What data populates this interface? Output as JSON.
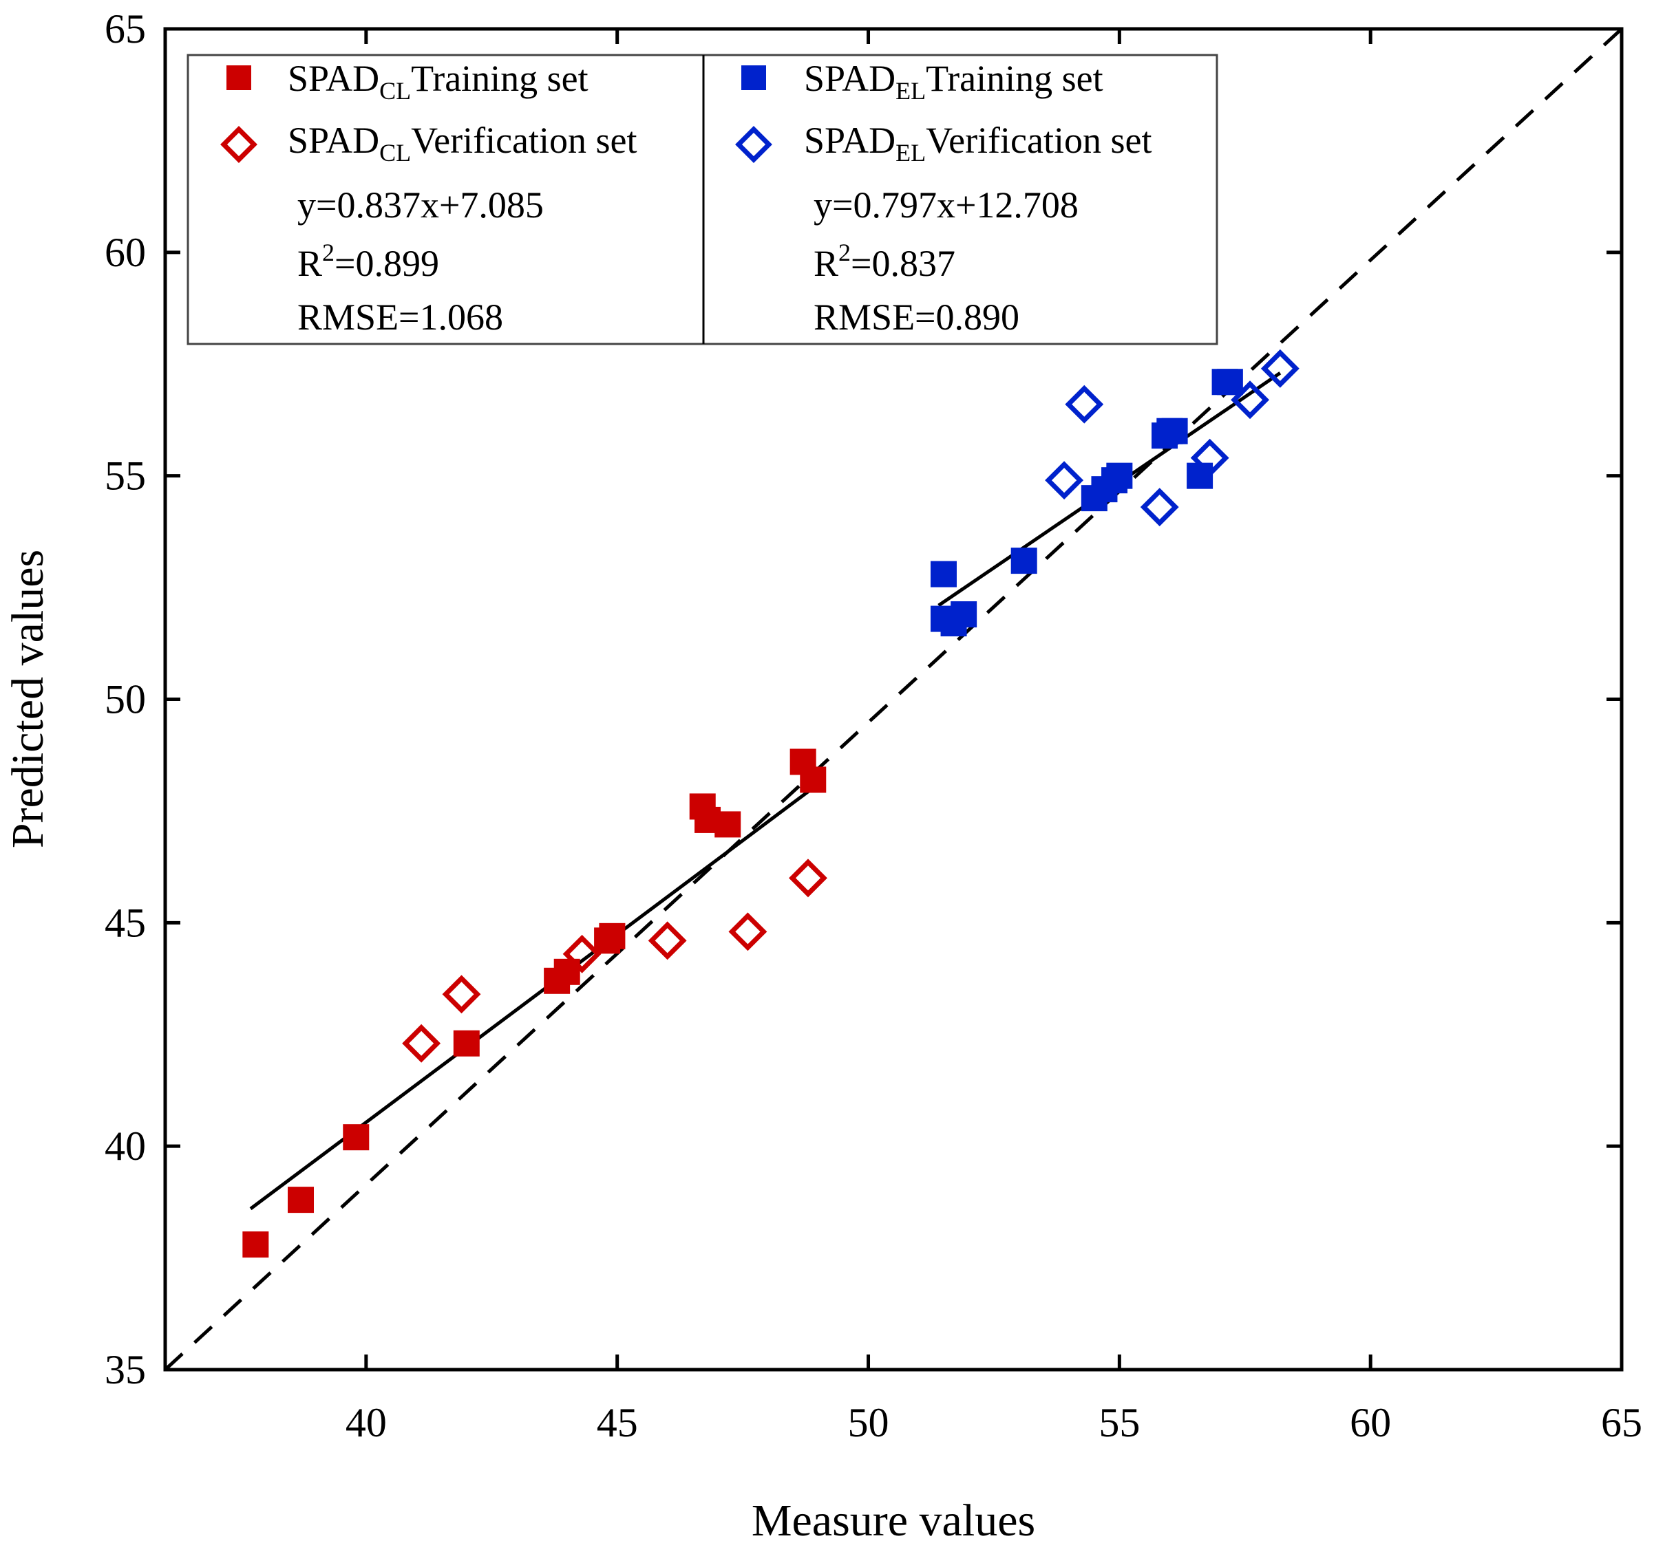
{
  "chart_data": {
    "type": "scatter",
    "xlabel": "Measure values",
    "ylabel": "Predicted values",
    "xlim": [
      36,
      65
    ],
    "ylim": [
      35,
      65
    ],
    "x_ticks": [
      "40",
      "45",
      "50",
      "55",
      "60",
      "65"
    ],
    "y_ticks": [
      "35",
      "40",
      "45",
      "50",
      "55",
      "60",
      "65"
    ],
    "grid": false,
    "legend_position": "top-left",
    "reference_line": {
      "style": "dashed",
      "color": "#000000",
      "from": [
        36,
        35
      ],
      "to": [
        65,
        65
      ]
    },
    "legend": {
      "columns": [
        {
          "entries": [
            {
              "main": "SPAD",
              "sub": "CL",
              "suffix": "Training set",
              "marker": "square-filled",
              "color": "#cc0000"
            },
            {
              "main": "SPAD",
              "sub": "CL",
              "suffix": "Verification set",
              "marker": "diamond-open",
              "color": "#cc0000"
            }
          ],
          "equation": "y=0.837x+7.085",
          "r2_label": "R",
          "r2_sup": "2",
          "r2_value": "=0.899",
          "rmse": "RMSE=1.068"
        },
        {
          "entries": [
            {
              "main": "SPAD",
              "sub": "EL",
              "suffix": "Training set",
              "marker": "square-filled",
              "color": "#0022cc"
            },
            {
              "main": "SPAD",
              "sub": "EL",
              "suffix": "Verification set",
              "marker": "diamond-open",
              "color": "#0022cc"
            }
          ],
          "equation": "y=0.797x+12.708",
          "r2_label": "R",
          "r2_sup": "2",
          "r2_value": "=0.837",
          "rmse": "RMSE=0.890"
        }
      ]
    },
    "series": [
      {
        "name": "SPADCL Training set",
        "marker": "square-filled",
        "color": "#cc0000",
        "points": [
          [
            37.8,
            37.8
          ],
          [
            38.7,
            38.8
          ],
          [
            39.8,
            40.2
          ],
          [
            42.0,
            42.3
          ],
          [
            43.8,
            43.7
          ],
          [
            44.0,
            43.9
          ],
          [
            44.8,
            44.6
          ],
          [
            44.9,
            44.7
          ],
          [
            46.7,
            47.6
          ],
          [
            46.8,
            47.3
          ],
          [
            47.2,
            47.2
          ],
          [
            48.7,
            48.6
          ],
          [
            48.9,
            48.2
          ]
        ]
      },
      {
        "name": "SPADCL Verification set",
        "marker": "diamond-open",
        "color": "#cc0000",
        "points": [
          [
            41.1,
            42.3
          ],
          [
            41.9,
            43.4
          ],
          [
            44.3,
            44.3
          ],
          [
            46.0,
            44.6
          ],
          [
            47.6,
            44.8
          ],
          [
            48.8,
            46.0
          ]
        ]
      },
      {
        "name": "SPADEL Training set",
        "marker": "square-filled",
        "color": "#0022cc",
        "points": [
          [
            51.5,
            52.8
          ],
          [
            51.5,
            51.8
          ],
          [
            51.7,
            51.7
          ],
          [
            51.9,
            51.9
          ],
          [
            53.1,
            53.1
          ],
          [
            54.5,
            54.5
          ],
          [
            54.7,
            54.7
          ],
          [
            54.9,
            54.9
          ],
          [
            55.0,
            55.0
          ],
          [
            55.9,
            55.9
          ],
          [
            56.0,
            56.0
          ],
          [
            56.1,
            56.0
          ],
          [
            56.6,
            55.0
          ],
          [
            57.1,
            57.1
          ],
          [
            57.2,
            57.1
          ]
        ]
      },
      {
        "name": "SPADEL Verification set",
        "marker": "diamond-open",
        "color": "#0022cc",
        "points": [
          [
            53.9,
            54.9
          ],
          [
            54.3,
            56.6
          ],
          [
            55.8,
            54.3
          ],
          [
            56.8,
            55.4
          ],
          [
            57.6,
            56.7
          ],
          [
            58.2,
            57.4
          ]
        ]
      }
    ],
    "fit_lines": [
      {
        "color": "#000000",
        "from": [
          37.7,
          38.6
        ],
        "to": [
          49.0,
          48.1
        ]
      },
      {
        "color": "#000000",
        "from": [
          51.4,
          52.1
        ],
        "to": [
          58.2,
          57.3
        ]
      }
    ]
  }
}
